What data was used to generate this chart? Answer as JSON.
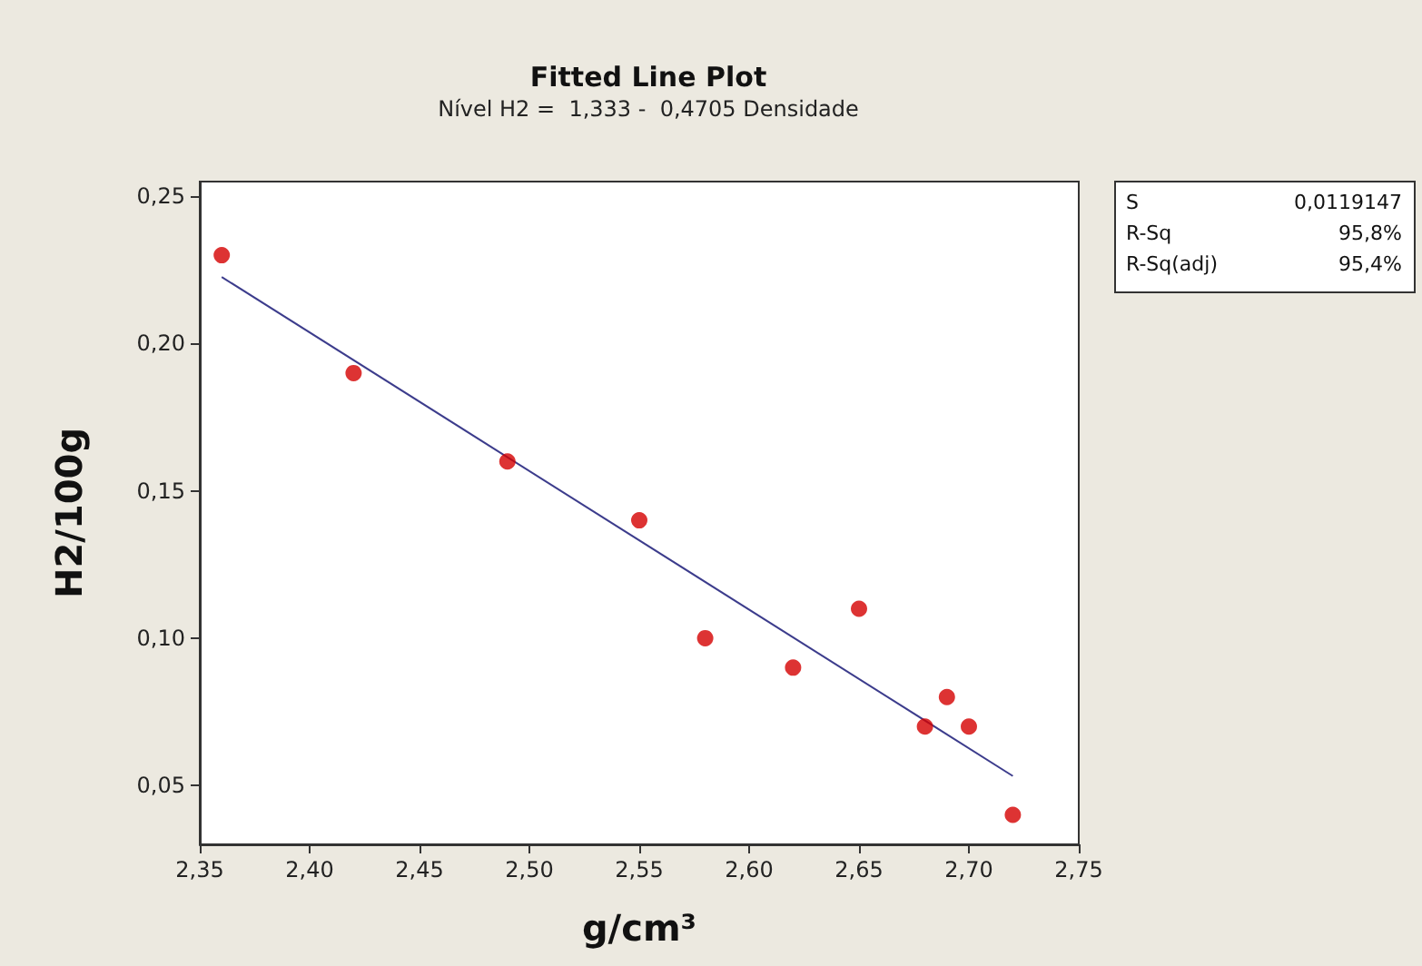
{
  "chart_data": {
    "type": "scatter",
    "title": "Fitted Line Plot",
    "subtitle": "Nível H2 =  1,333 -  0,4705 Densidade",
    "xlabel": "g/cm³",
    "ylabel": "H2/100g",
    "annotations": [
      "S",
      "0,0119147",
      "R-Sq",
      "95,8%",
      "R-Sq(adj)",
      "95,4%"
    ],
    "x": [
      2.36,
      2.42,
      2.49,
      2.55,
      2.58,
      2.62,
      2.65,
      2.68,
      2.69,
      2.7,
      2.72
    ],
    "series": [
      {
        "color": "#d40000",
        "marker": "circle",
        "values": [
          0.23,
          0.19,
          0.16,
          0.14,
          0.1,
          0.09,
          0.11,
          0.07,
          0.08,
          0.07,
          0.04
        ]
      },
      {
        "type": "line",
        "color": "#3c3c8c",
        "x": [
          2.36,
          2.72
        ],
        "values": [
          0.2226,
          0.0532
        ]
      }
    ],
    "grid": false,
    "xlim": [
      2.35,
      2.75
    ],
    "ylim": [
      0.03,
      0.255
    ],
    "xticks": [
      {
        "value": 2.35,
        "label": "2,35"
      },
      {
        "value": 2.4,
        "label": "2,40"
      },
      {
        "value": 2.45,
        "label": "2,45"
      },
      {
        "value": 2.5,
        "label": "2,50"
      },
      {
        "value": 2.55,
        "label": "2,55"
      },
      {
        "value": 2.6,
        "label": "2,60"
      },
      {
        "value": 2.65,
        "label": "2,65"
      },
      {
        "value": 2.7,
        "label": "2,70"
      },
      {
        "value": 2.75,
        "label": "2,75"
      }
    ],
    "yticks": [
      {
        "value": 0.05,
        "label": "0,05"
      },
      {
        "value": 0.1,
        "label": "0,10"
      },
      {
        "value": 0.15,
        "label": "0,15"
      },
      {
        "value": 0.2,
        "label": "0,20"
      },
      {
        "value": 0.25,
        "label": "0,25"
      }
    ]
  }
}
